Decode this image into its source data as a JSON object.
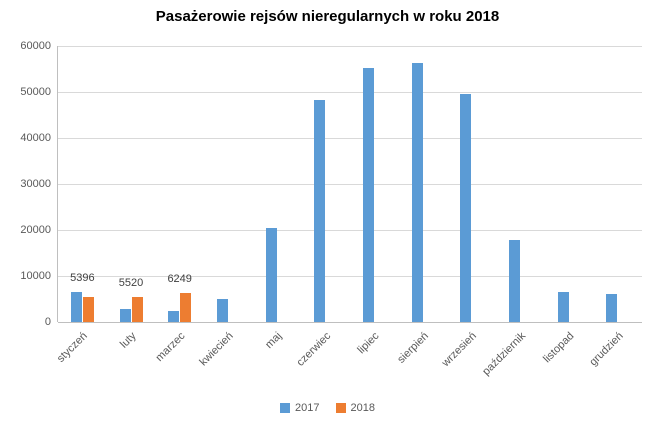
{
  "chart_data": {
    "type": "bar",
    "title": "Pasażerowie rejsów nieregularnych w roku 2018",
    "categories": [
      "styczeń",
      "luty",
      "marzec",
      "kwiecień",
      "maj",
      "czerwiec",
      "lipiec",
      "sierpień",
      "wrzesień",
      "październik",
      "listopad",
      "grudzień"
    ],
    "series": [
      {
        "name": "2017",
        "color": "#5B9BD5",
        "values": [
          6500,
          2800,
          2400,
          5000,
          20500,
          48300,
          55300,
          56300,
          49600,
          17800,
          6500,
          6000
        ]
      },
      {
        "name": "2018",
        "color": "#ED7D31",
        "values": [
          5396,
          5520,
          6249,
          0,
          0,
          0,
          0,
          0,
          0,
          0,
          0,
          0
        ],
        "data_labels": [
          "5396",
          "5520",
          "6249",
          "",
          "",
          "",
          "",
          "",
          "",
          "",
          "",
          ""
        ]
      }
    ],
    "ylim": [
      0,
      60000
    ],
    "ytick_step": 10000,
    "yticks": [
      "0",
      "10000",
      "20000",
      "30000",
      "40000",
      "50000",
      "60000"
    ],
    "grid": true,
    "legend_position": "bottom"
  }
}
